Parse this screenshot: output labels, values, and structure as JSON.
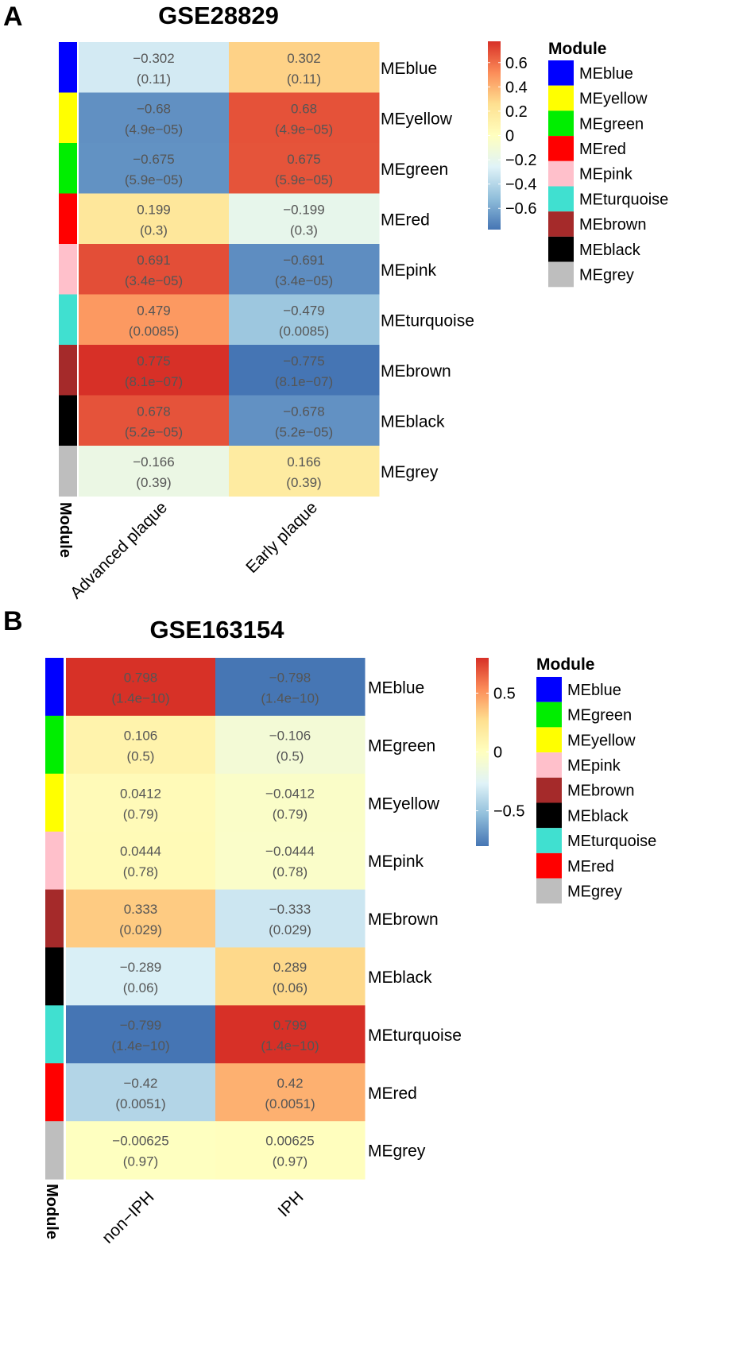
{
  "chart_data": [
    {
      "type": "heatmap",
      "panel": "A",
      "title": "GSE28829",
      "columns": [
        "Advanced plaque",
        "Early plaque"
      ],
      "side_label": "Module",
      "rows": [
        {
          "module": "MEblue",
          "color": "#0000ff",
          "values": [
            -0.302,
            0.302
          ],
          "labels": [
            "−0.302",
            "0.302"
          ],
          "pvalues": [
            "(0.11)",
            "(0.11)"
          ]
        },
        {
          "module": "MEyellow",
          "color": "#ffff00",
          "values": [
            -0.68,
            0.68
          ],
          "labels": [
            "−0.68",
            "0.68"
          ],
          "pvalues": [
            "(4.9e−05)",
            "(4.9e−05)"
          ]
        },
        {
          "module": "MEgreen",
          "color": "#00ee00",
          "values": [
            -0.675,
            0.675
          ],
          "labels": [
            "−0.675",
            "0.675"
          ],
          "pvalues": [
            "(5.9e−05)",
            "(5.9e−05)"
          ]
        },
        {
          "module": "MEred",
          "color": "#ff0000",
          "values": [
            0.199,
            -0.199
          ],
          "labels": [
            "0.199",
            "−0.199"
          ],
          "pvalues": [
            "(0.3)",
            "(0.3)"
          ]
        },
        {
          "module": "MEpink",
          "color": "#ffc0cb",
          "values": [
            0.691,
            -0.691
          ],
          "labels": [
            "0.691",
            "−0.691"
          ],
          "pvalues": [
            "(3.4e−05)",
            "(3.4e−05)"
          ]
        },
        {
          "module": "MEturquoise",
          "color": "#40e0d0",
          "values": [
            0.479,
            -0.479
          ],
          "labels": [
            "0.479",
            "−0.479"
          ],
          "pvalues": [
            "(0.0085)",
            "(0.0085)"
          ]
        },
        {
          "module": "MEbrown",
          "color": "#a52a2a",
          "values": [
            0.775,
            -0.775
          ],
          "labels": [
            "0.775",
            "−0.775"
          ],
          "pvalues": [
            "(8.1e−07)",
            "(8.1e−07)"
          ]
        },
        {
          "module": "MEblack",
          "color": "#000000",
          "values": [
            0.678,
            -0.678
          ],
          "labels": [
            "0.678",
            "−0.678"
          ],
          "pvalues": [
            "(5.2e−05)",
            "(5.2e−05)"
          ]
        },
        {
          "module": "MEgrey",
          "color": "#bebebe",
          "values": [
            -0.166,
            0.166
          ],
          "labels": [
            "−0.166",
            "0.166"
          ],
          "pvalues": [
            "(0.39)",
            "(0.39)"
          ]
        }
      ],
      "colorbar": {
        "range": [
          -0.775,
          0.775
        ],
        "ticks": [
          0.6,
          0.4,
          0.2,
          0,
          -0.2,
          -0.4,
          -0.6
        ],
        "tick_labels": [
          "0.6",
          "0.4",
          "0.2",
          "0",
          "−0.2",
          "−0.4",
          "−0.6"
        ]
      },
      "legend": {
        "title": "Module",
        "items": [
          {
            "label": "MEblue",
            "color": "#0000ff"
          },
          {
            "label": "MEyellow",
            "color": "#ffff00"
          },
          {
            "label": "MEgreen",
            "color": "#00ee00"
          },
          {
            "label": "MEred",
            "color": "#ff0000"
          },
          {
            "label": "MEpink",
            "color": "#ffc0cb"
          },
          {
            "label": "MEturquoise",
            "color": "#40e0d0"
          },
          {
            "label": "MEbrown",
            "color": "#a52a2a"
          },
          {
            "label": "MEblack",
            "color": "#000000"
          },
          {
            "label": "MEgrey",
            "color": "#bebebe"
          }
        ]
      }
    },
    {
      "type": "heatmap",
      "panel": "B",
      "title": "GSE163154",
      "columns": [
        "non−IPH",
        "IPH"
      ],
      "side_label": "Module",
      "rows": [
        {
          "module": "MEblue",
          "color": "#0000ff",
          "values": [
            0.798,
            -0.798
          ],
          "labels": [
            "0.798",
            "−0.798"
          ],
          "pvalues": [
            "(1.4e−10)",
            "(1.4e−10)"
          ]
        },
        {
          "module": "MEgreen",
          "color": "#00ee00",
          "values": [
            0.106,
            -0.106
          ],
          "labels": [
            "0.106",
            "−0.106"
          ],
          "pvalues": [
            "(0.5)",
            "(0.5)"
          ]
        },
        {
          "module": "MEyellow",
          "color": "#ffff00",
          "values": [
            0.0412,
            -0.0412
          ],
          "labels": [
            "0.0412",
            "−0.0412"
          ],
          "pvalues": [
            "(0.79)",
            "(0.79)"
          ]
        },
        {
          "module": "MEpink",
          "color": "#ffc0cb",
          "values": [
            0.0444,
            -0.0444
          ],
          "labels": [
            "0.0444",
            "−0.0444"
          ],
          "pvalues": [
            "(0.78)",
            "(0.78)"
          ]
        },
        {
          "module": "MEbrown",
          "color": "#a52a2a",
          "values": [
            0.333,
            -0.333
          ],
          "labels": [
            "0.333",
            "−0.333"
          ],
          "pvalues": [
            "(0.029)",
            "(0.029)"
          ]
        },
        {
          "module": "MEblack",
          "color": "#000000",
          "values": [
            -0.289,
            0.289
          ],
          "labels": [
            "−0.289",
            "0.289"
          ],
          "pvalues": [
            "(0.06)",
            "(0.06)"
          ]
        },
        {
          "module": "MEturquoise",
          "color": "#40e0d0",
          "values": [
            -0.799,
            0.799
          ],
          "labels": [
            "−0.799",
            "0.799"
          ],
          "pvalues": [
            "(1.4e−10)",
            "(1.4e−10)"
          ]
        },
        {
          "module": "MEred",
          "color": "#ff0000",
          "values": [
            -0.42,
            0.42
          ],
          "labels": [
            "−0.42",
            "0.42"
          ],
          "pvalues": [
            "(0.0051)",
            "(0.0051)"
          ]
        },
        {
          "module": "MEgrey",
          "color": "#bebebe",
          "values": [
            -0.00625,
            0.00625
          ],
          "labels": [
            "−0.00625",
            "0.00625"
          ],
          "pvalues": [
            "(0.97)",
            "(0.97)"
          ]
        }
      ],
      "colorbar": {
        "range": [
          -0.8,
          0.8
        ],
        "ticks": [
          0.5,
          0,
          -0.5
        ],
        "tick_labels": [
          "0.5",
          "0",
          "−0.5"
        ]
      },
      "legend": {
        "title": "Module",
        "items": [
          {
            "label": "MEblue",
            "color": "#0000ff"
          },
          {
            "label": "MEgreen",
            "color": "#00ee00"
          },
          {
            "label": "MEyellow",
            "color": "#ffff00"
          },
          {
            "label": "MEpink",
            "color": "#ffc0cb"
          },
          {
            "label": "MEbrown",
            "color": "#a52a2a"
          },
          {
            "label": "MEblack",
            "color": "#000000"
          },
          {
            "label": "MEturquoise",
            "color": "#40e0d0"
          },
          {
            "label": "MEred",
            "color": "#ff0000"
          },
          {
            "label": "MEgrey",
            "color": "#bebebe"
          }
        ]
      }
    }
  ]
}
